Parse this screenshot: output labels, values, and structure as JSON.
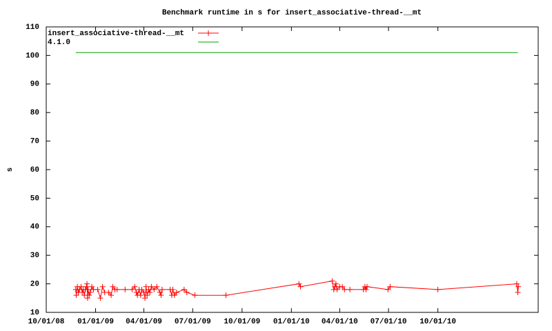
{
  "chart_data": {
    "type": "line",
    "title": "Benchmark runtime in s for insert_associative-thread-__mt",
    "y_label": "s",
    "xlim": [
      "2008-10-01",
      "2011-04-06"
    ],
    "xticks": [
      {
        "value": "2008-10-01",
        "label": "10/01/08"
      },
      {
        "value": "2009-01-01",
        "label": "01/01/09"
      },
      {
        "value": "2009-04-01",
        "label": "04/01/09"
      },
      {
        "value": "2009-07-01",
        "label": "07/01/09"
      },
      {
        "value": "2009-10-01",
        "label": "10/01/09"
      },
      {
        "value": "2010-01-01",
        "label": "01/01/10"
      },
      {
        "value": "2010-04-01",
        "label": "04/01/10"
      },
      {
        "value": "2010-07-01",
        "label": "07/01/10"
      },
      {
        "value": "2010-10-01",
        "label": "10/01/10"
      }
    ],
    "ylim": [
      10,
      110
    ],
    "yticks": [
      10,
      20,
      30,
      40,
      50,
      60,
      70,
      80,
      90,
      100,
      110
    ],
    "legend": "top-left",
    "series": [
      {
        "name": "insert_associative-thread-__mt",
        "color": "#ff0000",
        "marker": "+",
        "x": [
          "2008-11-25",
          "2008-11-26",
          "2008-11-28",
          "2008-11-30",
          "2008-12-02",
          "2008-12-05",
          "2008-12-07",
          "2008-12-09",
          "2008-12-11",
          "2008-12-13",
          "2008-12-15",
          "2008-12-16",
          "2008-12-17",
          "2008-12-18",
          "2008-12-20",
          "2008-12-22",
          "2008-12-25",
          "2008-12-28",
          "2009-01-05",
          "2009-01-10",
          "2009-01-14",
          "2009-01-18",
          "2009-01-25",
          "2009-01-30",
          "2009-02-02",
          "2009-02-06",
          "2009-02-10",
          "2009-02-25",
          "2009-03-10",
          "2009-03-15",
          "2009-03-18",
          "2009-03-20",
          "2009-03-23",
          "2009-03-26",
          "2009-03-28",
          "2009-04-01",
          "2009-04-03",
          "2009-04-05",
          "2009-04-07",
          "2009-04-10",
          "2009-04-12",
          "2009-04-15",
          "2009-04-20",
          "2009-04-25",
          "2009-05-01",
          "2009-05-03",
          "2009-05-05",
          "2009-05-20",
          "2009-05-23",
          "2009-05-25",
          "2009-05-28",
          "2009-06-01",
          "2009-06-15",
          "2009-06-20",
          "2009-07-05",
          "2009-09-01",
          "2010-01-15",
          "2010-01-18",
          "2010-03-18",
          "2010-03-21",
          "2010-03-23",
          "2010-03-25",
          "2010-03-27",
          "2010-04-01",
          "2010-04-06",
          "2010-04-10",
          "2010-04-20",
          "2010-05-15",
          "2010-05-18",
          "2010-05-20",
          "2010-05-22",
          "2010-06-30",
          "2010-07-04",
          "2010-10-01",
          "2011-02-25",
          "2011-02-27",
          "2011-02-28"
        ],
        "values": [
          18,
          16,
          19,
          17,
          18,
          19,
          17,
          18,
          16,
          18,
          19,
          20,
          15,
          18,
          16,
          17,
          19,
          18,
          18,
          15,
          19,
          17,
          17,
          16,
          19,
          18,
          18,
          18,
          18,
          19,
          17,
          16,
          18,
          16,
          18,
          17,
          15,
          19,
          16,
          18,
          17,
          19,
          18,
          19,
          17,
          16,
          18,
          18,
          16,
          18,
          16,
          17,
          18,
          17,
          16,
          16,
          20,
          19,
          21,
          18,
          19,
          20,
          18,
          19,
          19,
          18,
          18,
          18,
          19,
          18,
          19,
          18,
          19,
          18,
          20,
          17,
          19
        ]
      },
      {
        "name": "4.1.0",
        "color": "#00a000",
        "x": [
          "2008-11-25",
          "2011-02-27"
        ],
        "values": [
          101,
          101
        ]
      }
    ]
  }
}
